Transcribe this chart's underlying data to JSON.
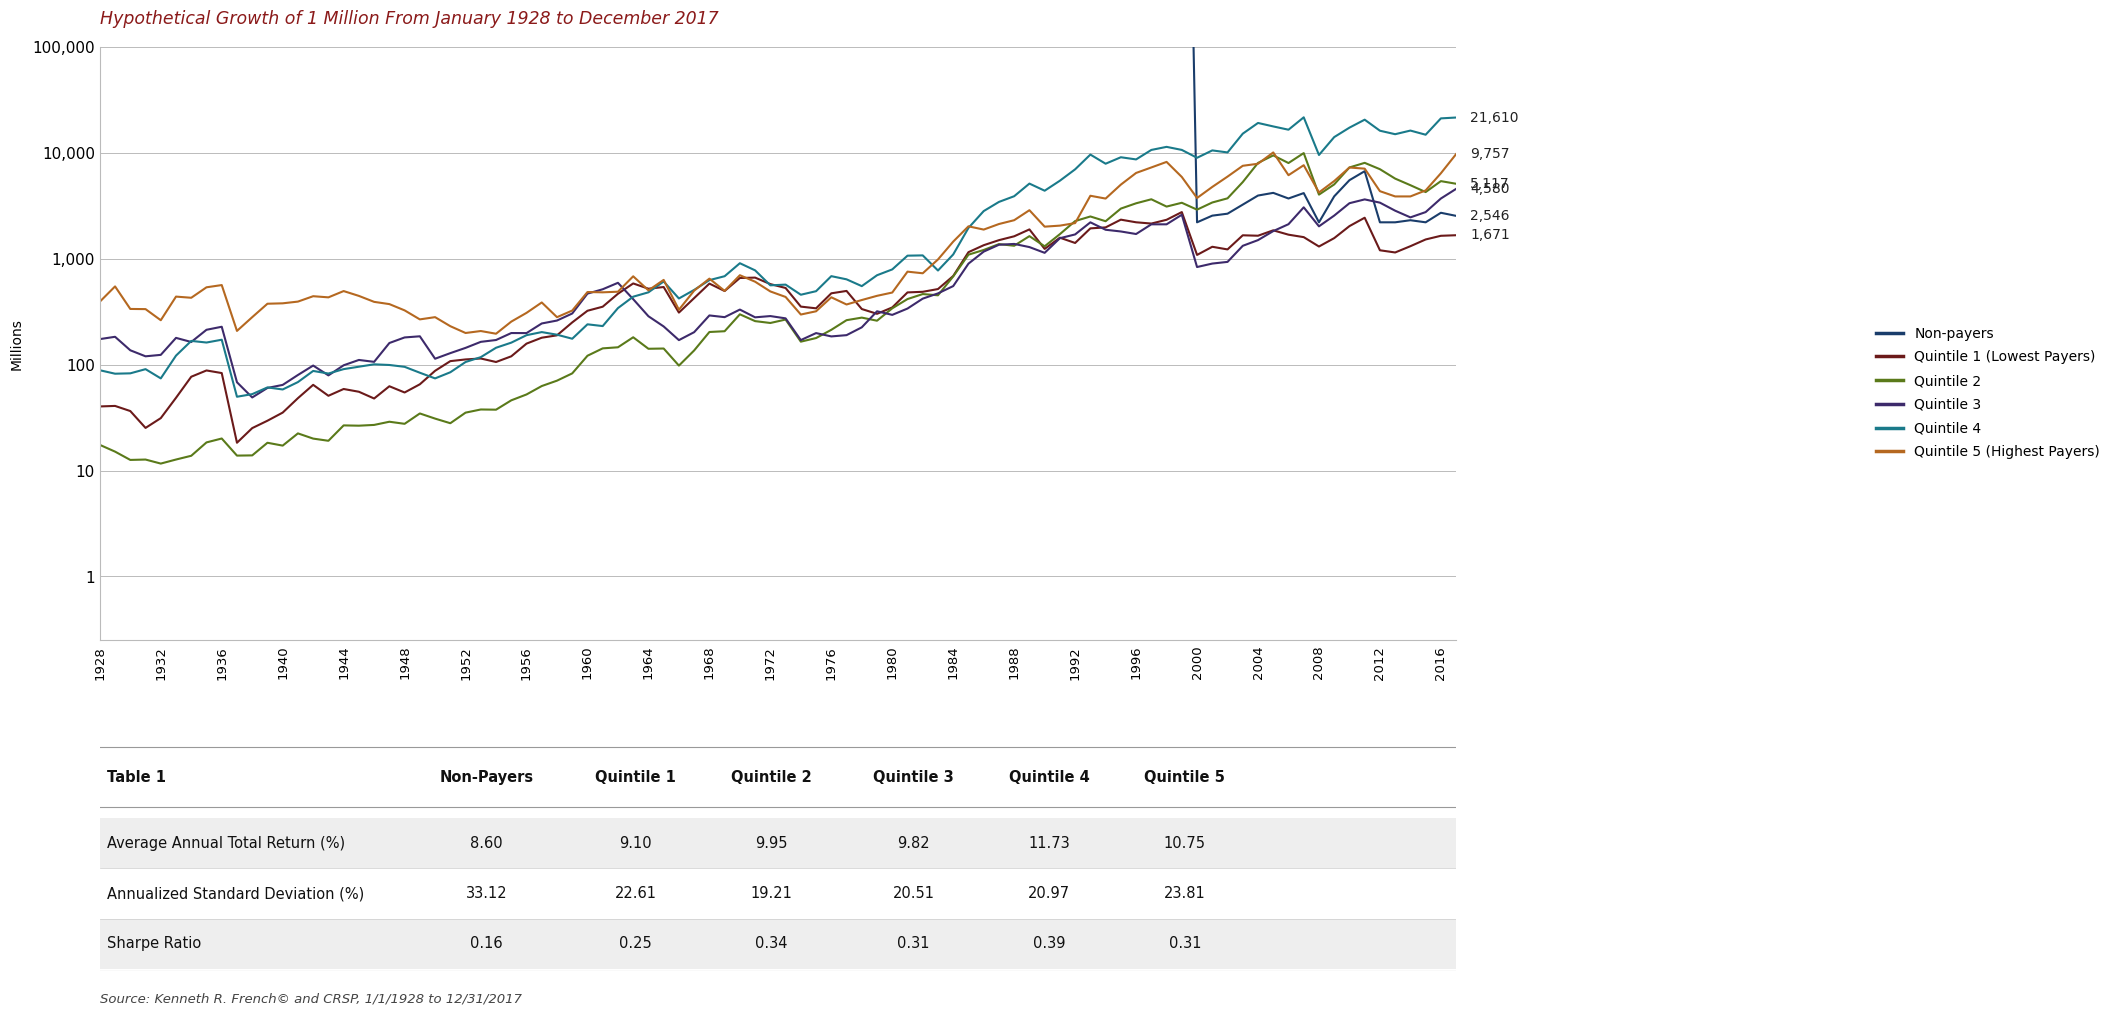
{
  "title": "Hypothetical Growth of 1 Million From January 1928 to December 2017",
  "title_color": "#8b1a1a",
  "ylabel": "Millions",
  "start_year": 1928,
  "end_year": 2017,
  "final_values": {
    "Quintile 4": 21610,
    "Quintile 5 (Highest Payers)": 9757,
    "Quintile 2": 5117,
    "Quintile 3": 4580,
    "Non-payers": 2546,
    "Quintile 1 (Lowest Payers)": 1671
  },
  "annual_returns": {
    "Non-payers": 0.086,
    "Quintile 1 (Lowest Payers)": 0.091,
    "Quintile 2": 0.0995,
    "Quintile 3": 0.0982,
    "Quintile 4": 0.1173,
    "Quintile 5 (Highest Payers)": 0.1075
  },
  "std_devs": {
    "Non-payers": 0.3312,
    "Quintile 1 (Lowest Payers)": 0.2261,
    "Quintile 2": 0.1921,
    "Quintile 3": 0.2051,
    "Quintile 4": 0.2097,
    "Quintile 5 (Highest Payers)": 0.2381
  },
  "colors": {
    "Non-payers": "#1a3d6b",
    "Quintile 1 (Lowest Payers)": "#6b1a1a",
    "Quintile 2": "#5a7a1a",
    "Quintile 3": "#3d2a6b",
    "Quintile 4": "#1a7a8a",
    "Quintile 5 (Highest Payers)": "#b56820"
  },
  "series_order": [
    "Non-payers",
    "Quintile 1 (Lowest Payers)",
    "Quintile 2",
    "Quintile 3",
    "Quintile 4",
    "Quintile 5 (Highest Payers)"
  ],
  "final_label_order": [
    [
      "Quintile 4",
      "21,610"
    ],
    [
      "Quintile 5 (Highest Payers)",
      "9,757"
    ],
    [
      "Quintile 2",
      "5,117"
    ],
    [
      "Quintile 3",
      "4,580"
    ],
    [
      "Non-payers",
      "2,546"
    ],
    [
      "Quintile 1 (Lowest Payers)",
      "1,671"
    ]
  ],
  "table_headers": [
    "Table 1",
    "Non-Payers",
    "Quintile 1",
    "Quintile 2",
    "Quintile 3",
    "Quintile 4",
    "Quintile 5"
  ],
  "table_rows": [
    [
      "Average Annual Total Return (%)",
      "8.60",
      "9.10",
      "9.95",
      "9.82",
      "11.73",
      "10.75"
    ],
    [
      "Annualized Standard Deviation (%)",
      "33.12",
      "22.61",
      "19.21",
      "20.51",
      "20.97",
      "23.81"
    ],
    [
      "Sharpe Ratio",
      "0.16",
      "0.25",
      "0.34",
      "0.31",
      "0.39",
      "0.31"
    ]
  ],
  "source_text": "Source: Kenneth R. French© and CRSP, 1/1/1928 to 12/31/2017",
  "background_color": "#ffffff",
  "grid_color": "#bbbbbb",
  "table_alt_row_color": "#eeeeee"
}
